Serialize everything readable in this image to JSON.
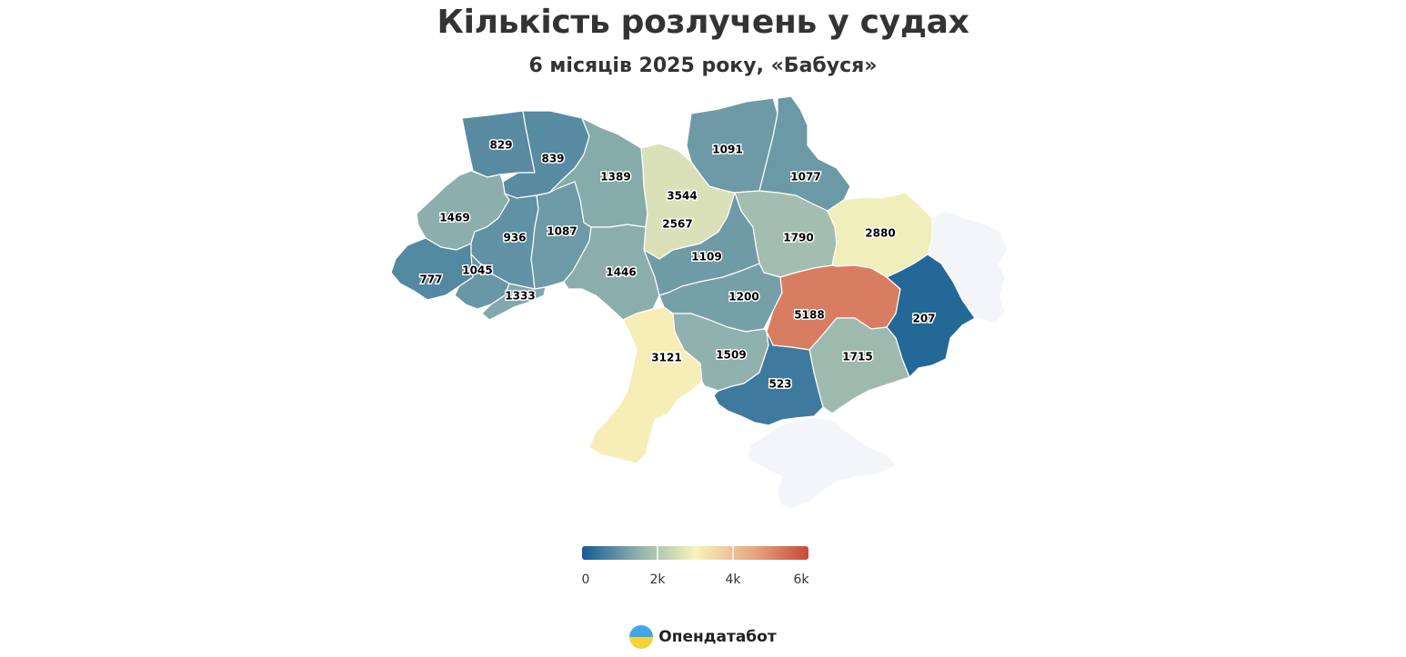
{
  "title": "Кількість розлучень у судах",
  "subtitle": "6 місяців 2025 року, «Бабуся»",
  "brand": {
    "name": "Опендатабот",
    "logo_icon": "opendatabot-logo-icon"
  },
  "colors": {
    "no_data": "#f4f5f8",
    "no_data_stroke": "#c7cfe0",
    "scale": [
      "#135c95",
      "#8fb1ad",
      "#f8f3bc",
      "#e8a883",
      "#c74a3a"
    ]
  },
  "legend": {
    "min": 0,
    "max": 6000,
    "ticks": [
      "0",
      "2k",
      "4k",
      "6k"
    ]
  },
  "chart_data": {
    "type": "choropleth",
    "metric": "Кількість розлучень у судах",
    "scale": {
      "min": 0,
      "max": 6000
    },
    "regions": [
      {
        "id": "volyn",
        "value": 829,
        "label": "829"
      },
      {
        "id": "rivne",
        "value": 839,
        "label": "839"
      },
      {
        "id": "zhytomyr",
        "value": 1389,
        "label": "1389"
      },
      {
        "id": "kyiv-city",
        "value": 3544,
        "label": "3544"
      },
      {
        "id": "kyiv-oblast",
        "value": 2567,
        "label": "2567"
      },
      {
        "id": "chernihiv",
        "value": 1091,
        "label": "1091"
      },
      {
        "id": "sumy",
        "value": 1077,
        "label": "1077"
      },
      {
        "id": "lviv",
        "value": 1469,
        "label": "1469"
      },
      {
        "id": "ternopil",
        "value": 936,
        "label": "936"
      },
      {
        "id": "khmelnytskyi",
        "value": 1087,
        "label": "1087"
      },
      {
        "id": "vinnytsia",
        "value": 1446,
        "label": "1446"
      },
      {
        "id": "cherkasy",
        "value": 1109,
        "label": "1109"
      },
      {
        "id": "poltava",
        "value": 1790,
        "label": "1790"
      },
      {
        "id": "kharkiv",
        "value": 2880,
        "label": "2880"
      },
      {
        "id": "zakarpattia",
        "value": 777,
        "label": "777"
      },
      {
        "id": "ivano-frankivsk",
        "value": 1045,
        "label": "1045"
      },
      {
        "id": "chernivtsi",
        "value": 1333,
        "label": "1333"
      },
      {
        "id": "kirovohrad",
        "value": 1200,
        "label": "1200"
      },
      {
        "id": "dnipropetrovsk",
        "value": 5188,
        "label": "5188"
      },
      {
        "id": "donetsk",
        "value": 207,
        "label": "207"
      },
      {
        "id": "odesa",
        "value": 3121,
        "label": "3121"
      },
      {
        "id": "mykolaiv",
        "value": 1509,
        "label": "1509"
      },
      {
        "id": "zaporizhzhia",
        "value": 1715,
        "label": "1715"
      },
      {
        "id": "kherson",
        "value": 523,
        "label": "523"
      },
      {
        "id": "luhansk",
        "value": null
      },
      {
        "id": "crimea",
        "value": null
      }
    ]
  }
}
